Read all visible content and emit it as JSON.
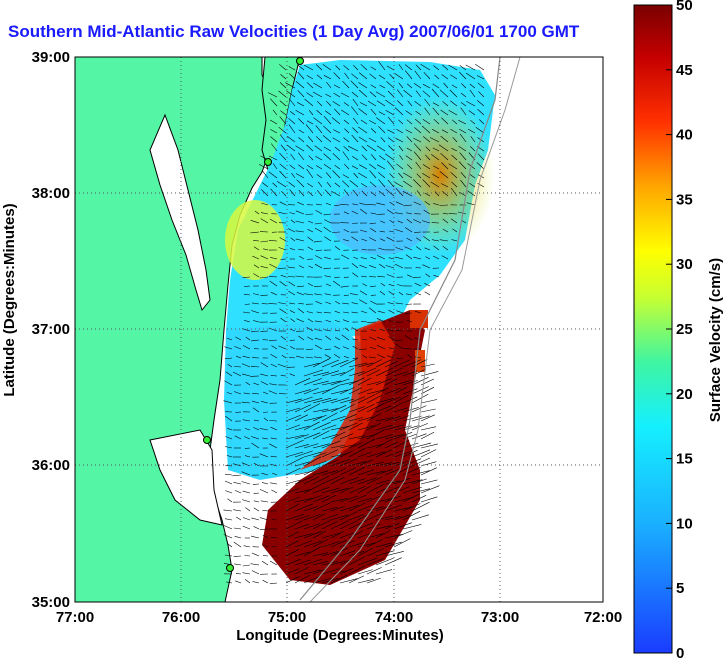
{
  "title": "Southern Mid-Atlantic Raw Velocities (1 Day Avg) 2007/06/01 1700 GMT",
  "axes": {
    "x_label": "Longitude (Degrees:Minutes)",
    "y_label": "Latitude (Degrees:Minutes)",
    "x_ticks": [
      "77:00",
      "76:00",
      "75:00",
      "74:00",
      "73:00",
      "72:00"
    ],
    "y_ticks": [
      "39:00",
      "38:00",
      "37:00",
      "36:00",
      "35:00"
    ],
    "x_range": [
      -77,
      -72
    ],
    "y_range": [
      35,
      39
    ]
  },
  "colorbar": {
    "label": "Surface Velocity (cm/s)",
    "ticks": [
      "50",
      "45",
      "40",
      "35",
      "30",
      "25",
      "20",
      "15",
      "10",
      "5",
      "0"
    ],
    "range": [
      0,
      50
    ]
  },
  "colors": {
    "title": "#1a1aff",
    "land": "#55f5a6",
    "coast": "#000000",
    "grid": "#555555"
  }
}
